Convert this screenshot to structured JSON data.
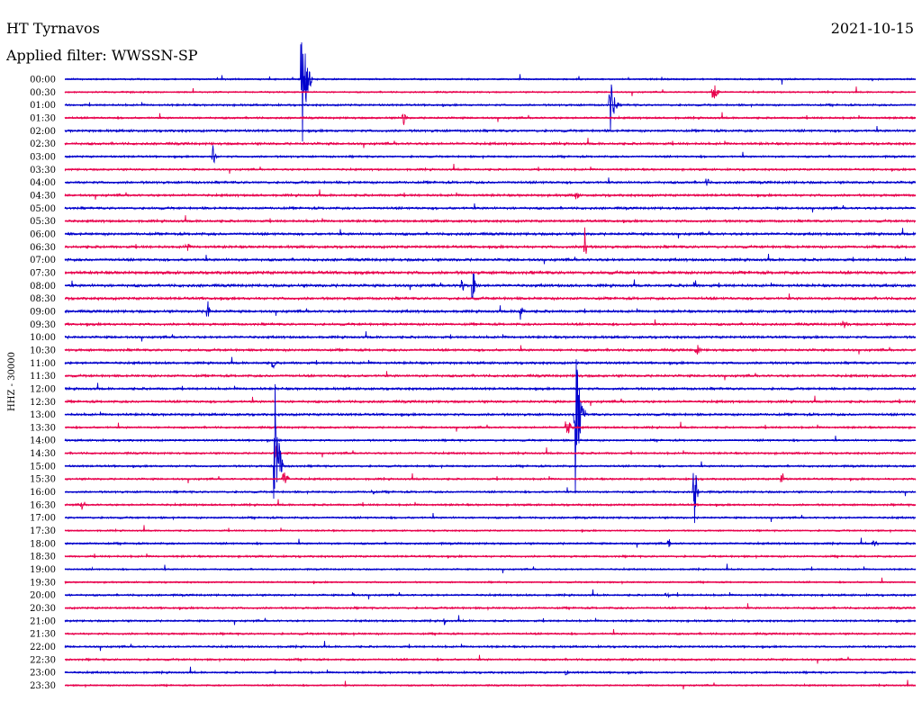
{
  "header": {
    "station": "HT Tyrnavos",
    "date": "2021-10-15",
    "filter": "Applied filter: WWSSN-SP"
  },
  "chart_data": {
    "type": "line",
    "ylabel": "HHZ - 30000",
    "row_labels": [
      "00:00",
      "00:30",
      "01:00",
      "01:30",
      "02:00",
      "02:30",
      "03:00",
      "03:30",
      "04:00",
      "04:30",
      "05:00",
      "05:30",
      "06:00",
      "06:30",
      "07:00",
      "07:30",
      "08:00",
      "08:30",
      "09:00",
      "09:30",
      "10:00",
      "10:30",
      "11:00",
      "11:30",
      "12:00",
      "12:30",
      "13:00",
      "13:30",
      "14:00",
      "14:30",
      "15:00",
      "15:30",
      "16:00",
      "16:30",
      "17:00",
      "17:30",
      "18:00",
      "18:30",
      "19:00",
      "19:30",
      "20:00",
      "20:30",
      "21:00",
      "21:30",
      "22:00",
      "22:30",
      "23:00",
      "23:30"
    ],
    "colors": [
      "#0000cc",
      "#e8004c"
    ],
    "noise": [
      0.8,
      0.8,
      1.0,
      1.0,
      1.2,
      1.2,
      1.0,
      1.0,
      1.2,
      1.2,
      1.2,
      1.2,
      1.3,
      1.3,
      1.3,
      1.5,
      1.4,
      1.3,
      1.3,
      1.2,
      1.2,
      1.2,
      1.2,
      1.2,
      1.2,
      1.2,
      1.2,
      1.0,
      1.0,
      1.0,
      1.0,
      1.0,
      1.0,
      1.0,
      1.0,
      0.8,
      1.0,
      1.0,
      0.8,
      0.8,
      1.0,
      1.0,
      1.0,
      1.0,
      1.0,
      1.0,
      1.0,
      0.8
    ],
    "events": [
      {
        "row": 0,
        "t": 0.279,
        "amp": 84,
        "dur": 0.012
      },
      {
        "row": 1,
        "t": 0.762,
        "amp": 24,
        "dur": 0.008
      },
      {
        "row": 2,
        "t": 0.641,
        "amp": 36,
        "dur": 0.01
      },
      {
        "row": 3,
        "t": 0.398,
        "amp": 12,
        "dur": 0.006
      },
      {
        "row": 6,
        "t": 0.174,
        "amp": 14,
        "dur": 0.006
      },
      {
        "row": 8,
        "t": 0.755,
        "amp": 9,
        "dur": 0.005
      },
      {
        "row": 9,
        "t": 0.6,
        "amp": 7,
        "dur": 0.01
      },
      {
        "row": 13,
        "t": 0.143,
        "amp": 12,
        "dur": 0.006
      },
      {
        "row": 13,
        "t": 0.611,
        "amp": 28,
        "dur": 0.004
      },
      {
        "row": 16,
        "t": 0.466,
        "amp": 16,
        "dur": 0.006
      },
      {
        "row": 16,
        "t": 0.48,
        "amp": 30,
        "dur": 0.006
      },
      {
        "row": 16,
        "t": 0.741,
        "amp": 8,
        "dur": 0.004
      },
      {
        "row": 18,
        "t": 0.168,
        "amp": 14,
        "dur": 0.006
      },
      {
        "row": 18,
        "t": 0.535,
        "amp": 14,
        "dur": 0.008
      },
      {
        "row": 19,
        "t": 0.916,
        "amp": 8,
        "dur": 0.008
      },
      {
        "row": 21,
        "t": 0.743,
        "amp": 8,
        "dur": 0.008
      },
      {
        "row": 22,
        "t": 0.245,
        "amp": 12,
        "dur": 0.004
      },
      {
        "row": 26,
        "t": 0.6,
        "amp": 90,
        "dur": 0.012
      },
      {
        "row": 27,
        "t": 0.59,
        "amp": 14,
        "dur": 0.01
      },
      {
        "row": 29,
        "t": 0.248,
        "amp": 10,
        "dur": 0.004
      },
      {
        "row": 30,
        "t": 0.247,
        "amp": 112,
        "dur": 0.01
      },
      {
        "row": 31,
        "t": 0.258,
        "amp": 14,
        "dur": 0.008
      },
      {
        "row": 31,
        "t": 0.843,
        "amp": 10,
        "dur": 0.006
      },
      {
        "row": 32,
        "t": 0.362,
        "amp": 5,
        "dur": 0.004
      },
      {
        "row": 32,
        "t": 0.74,
        "amp": 44,
        "dur": 0.006
      },
      {
        "row": 33,
        "t": 0.02,
        "amp": 8,
        "dur": 0.004
      },
      {
        "row": 36,
        "t": 0.71,
        "amp": 10,
        "dur": 0.004
      },
      {
        "row": 36,
        "t": 0.95,
        "amp": 4,
        "dur": 0.02
      },
      {
        "row": 40,
        "t": 0.338,
        "amp": 5,
        "dur": 0.006
      },
      {
        "row": 40,
        "t": 0.707,
        "amp": 8,
        "dur": 0.006
      },
      {
        "row": 42,
        "t": 0.446,
        "amp": 6,
        "dur": 0.004
      },
      {
        "row": 46,
        "t": 0.59,
        "amp": 6,
        "dur": 0.004
      }
    ]
  }
}
